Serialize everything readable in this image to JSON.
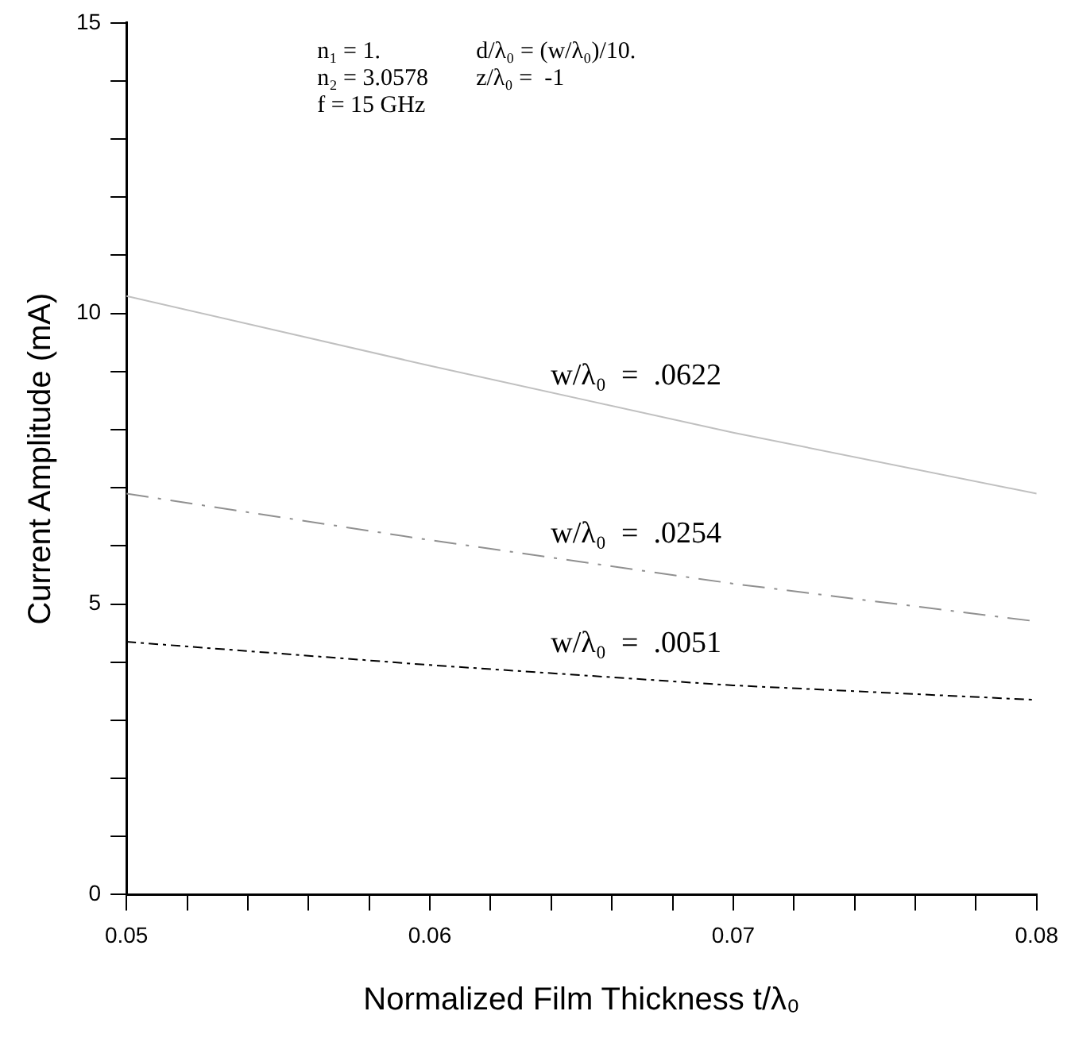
{
  "chart_data": {
    "type": "line",
    "xlabel": "Normalized Film Thickness t/λ₀",
    "ylabel": "Current Amplitude (mA)",
    "x": [
      0.05,
      0.06,
      0.07,
      0.08
    ],
    "series": [
      {
        "name": "w/λ₀  =  .0622",
        "color": "#c0c0c0",
        "line_style": "solid",
        "values": [
          10.3,
          9.1,
          7.95,
          6.9
        ]
      },
      {
        "name": "w/λ₀  =  .0254",
        "color": "#909090",
        "line_style": "dashed",
        "values": [
          6.9,
          6.1,
          5.35,
          4.7
        ]
      },
      {
        "name": "w/λ₀  =  .0051",
        "color": "#000000",
        "line_style": "dotted",
        "values": [
          4.35,
          3.95,
          3.6,
          3.35
        ]
      }
    ],
    "xlim": [
      0.05,
      0.08
    ],
    "xticks": [
      0.05,
      {
        "value": 0.052,
        "label": null
      },
      {
        "value": 0.054,
        "label": null
      },
      {
        "value": 0.056,
        "label": null
      },
      {
        "value": 0.058,
        "label": null
      },
      0.06,
      {
        "value": 0.062,
        "label": null
      },
      {
        "value": 0.064,
        "label": null
      },
      {
        "value": 0.066,
        "label": null
      },
      {
        "value": 0.068,
        "label": null
      },
      0.07,
      {
        "value": 0.072,
        "label": null
      },
      {
        "value": 0.074,
        "label": null
      },
      {
        "value": 0.076,
        "label": null
      },
      {
        "value": 0.078,
        "label": null
      },
      0.08
    ],
    "ylim": [
      0,
      15
    ],
    "yticks": [
      0,
      {
        "value": 1,
        "label": null
      },
      {
        "value": 2,
        "label": null
      },
      {
        "value": 3,
        "label": null
      },
      {
        "value": 4,
        "label": null
      },
      5,
      {
        "value": 6,
        "label": null
      },
      {
        "value": 7,
        "label": null
      },
      {
        "value": 8,
        "label": null
      },
      {
        "value": 9,
        "label": null
      },
      10,
      {
        "value": 11,
        "label": null
      },
      {
        "value": 12,
        "label": null
      },
      {
        "value": 13,
        "label": null
      },
      {
        "value": 14,
        "label": null
      },
      15
    ],
    "annotations": [
      "n₁ = 1.",
      "n₂ = 3.0578",
      "f = 15 GHz",
      "d/λ₀ = (w/λ₀)/10.",
      "z/λ₀ =  -1"
    ],
    "grid": false,
    "legend": false,
    "marker": "none"
  }
}
